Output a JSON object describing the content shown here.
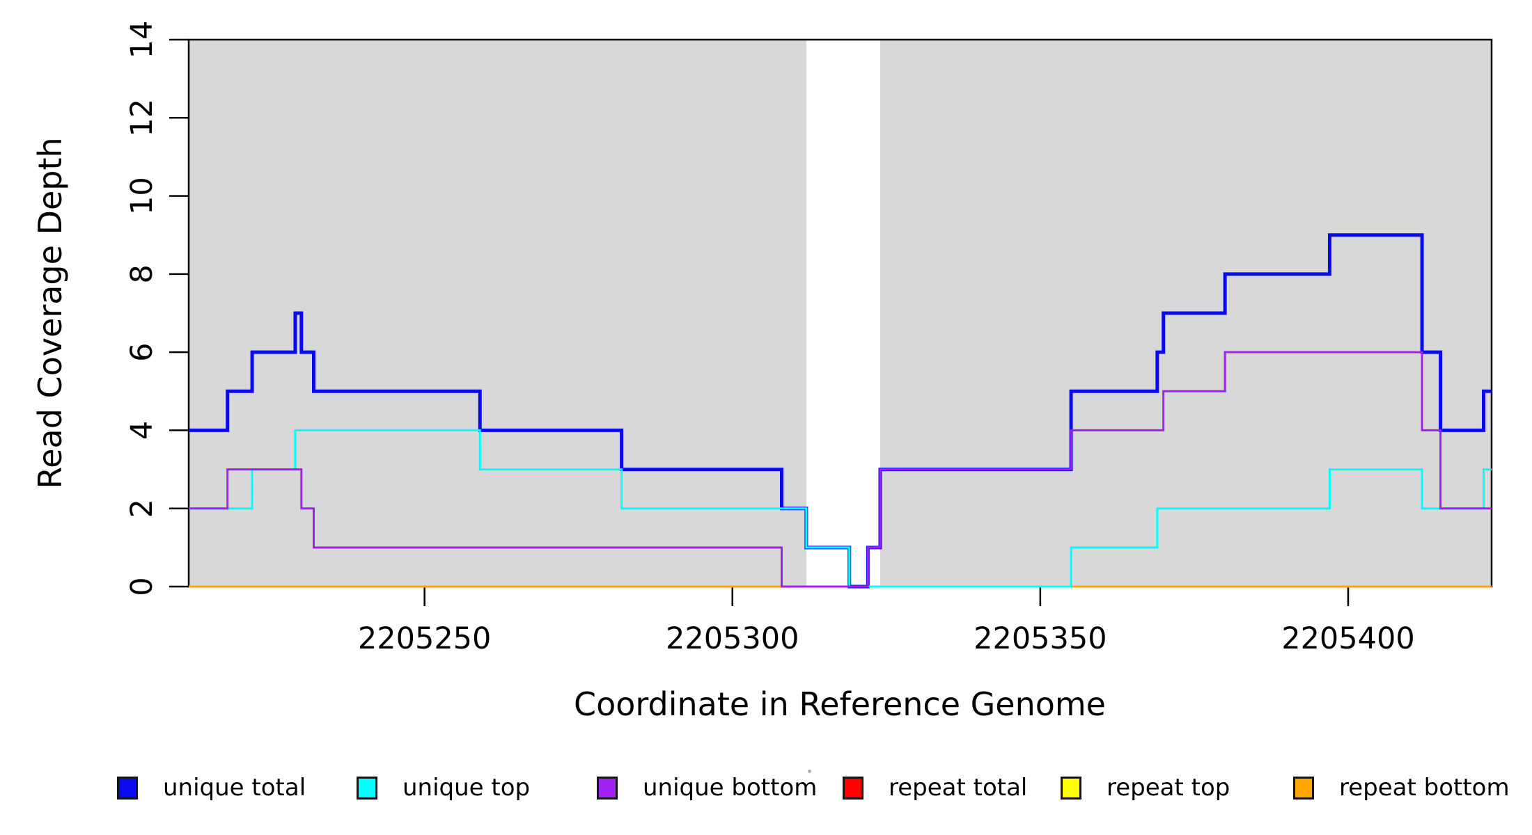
{
  "figure": {
    "background_color": "#FFFFFF",
    "plot_band_color": "#D8D8D8"
  },
  "chart_data": {
    "type": "line",
    "subtype": "step",
    "title": "",
    "xlabel": "Coordinate in Reference Genome",
    "ylabel": "Read Coverage Depth",
    "xlim": [
      2205211.7,
      2205423.3
    ],
    "ylim": [
      0,
      14
    ],
    "xticks": [
      2205250,
      2205300,
      2205350,
      2205400
    ],
    "yticks": [
      0,
      2,
      4,
      6,
      8,
      10,
      12,
      14
    ],
    "grid": false,
    "legend_position": "bottom-horizontal",
    "shaded_regions": {
      "color": "#D8D8D8",
      "ranges": [
        [
          2205211.7,
          2205312
        ],
        [
          2205324,
          2205423.3
        ]
      ]
    },
    "series": [
      {
        "id": "unique-total",
        "name": "unique total",
        "color": "#0A0AEF",
        "line_width": 5,
        "steps": [
          [
            2205211.7,
            4
          ],
          [
            2205218,
            5
          ],
          [
            2205222,
            6
          ],
          [
            2205229,
            7
          ],
          [
            2205230,
            6
          ],
          [
            2205232,
            5
          ],
          [
            2205259,
            4
          ],
          [
            2205282,
            3
          ],
          [
            2205308,
            2
          ],
          [
            2205312,
            1
          ],
          [
            2205319,
            0
          ],
          [
            2205322,
            1
          ],
          [
            2205324,
            3
          ],
          [
            2205355,
            5
          ],
          [
            2205369,
            6
          ],
          [
            2205370,
            7
          ],
          [
            2205380,
            8
          ],
          [
            2205397,
            9
          ],
          [
            2205412,
            6
          ],
          [
            2205415,
            4
          ],
          [
            2205422,
            5
          ]
        ]
      },
      {
        "id": "unique-top",
        "name": "unique top",
        "color": "#00FFFF",
        "line_width": 3,
        "steps": [
          [
            2205211.7,
            2
          ],
          [
            2205222,
            3
          ],
          [
            2205229,
            4
          ],
          [
            2205259,
            3
          ],
          [
            2205282,
            2
          ],
          [
            2205312,
            1
          ],
          [
            2205319,
            0
          ],
          [
            2205355,
            1
          ],
          [
            2205369,
            2
          ],
          [
            2205397,
            3
          ],
          [
            2205412,
            2
          ],
          [
            2205422,
            3
          ]
        ]
      },
      {
        "id": "unique-bottom",
        "name": "unique bottom",
        "color": "#A020F0",
        "line_width": 3,
        "steps": [
          [
            2205211.7,
            2
          ],
          [
            2205218,
            3
          ],
          [
            2205230,
            2
          ],
          [
            2205232,
            1
          ],
          [
            2205308,
            0
          ],
          [
            2205322,
            1
          ],
          [
            2205324,
            3
          ],
          [
            2205355,
            4
          ],
          [
            2205370,
            5
          ],
          [
            2205380,
            6
          ],
          [
            2205412,
            4
          ],
          [
            2205415,
            2
          ]
        ]
      },
      {
        "id": "repeat-total",
        "name": "repeat total",
        "color": "#FF0000",
        "line_width": 2.5,
        "steps": [
          [
            2205211.7,
            0
          ]
        ]
      },
      {
        "id": "repeat-top",
        "name": "repeat top",
        "color": "#FFFF00",
        "line_width": 2.5,
        "steps": [
          [
            2205211.7,
            0
          ]
        ]
      },
      {
        "id": "repeat-bottom",
        "name": "repeat bottom",
        "color": "#FFA500",
        "line_width": 3,
        "steps": [
          [
            2205211.7,
            0
          ]
        ]
      }
    ]
  }
}
